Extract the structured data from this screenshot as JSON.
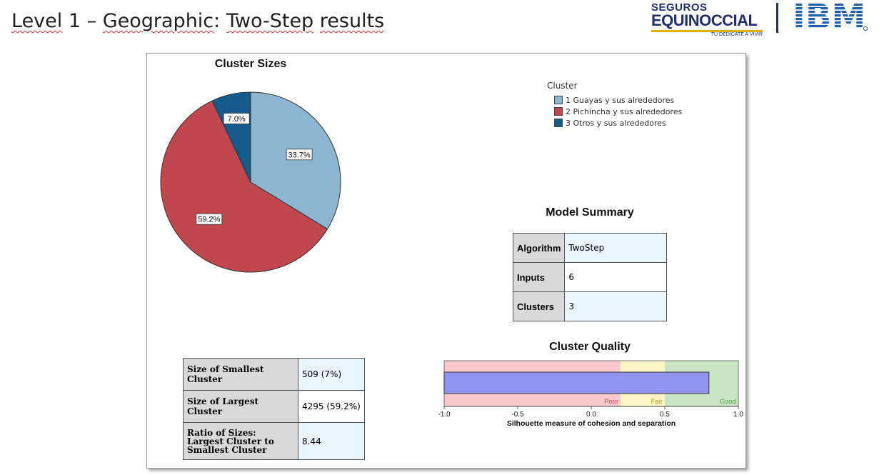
{
  "slide": {
    "title_parts": [
      "Level",
      " 1 – ",
      "Geographic",
      ": ",
      "Two-Step",
      " ",
      "results"
    ]
  },
  "logos": {
    "equinoccial_line1": "SEGUROS",
    "equinoccial_line2": "EQUINOCCIAL",
    "equinoccial_tagline": "TÚ DEDÍCATE A VIVIR",
    "ibm": "IBM"
  },
  "pie": {
    "title": "Cluster Sizes",
    "slices": [
      {
        "label": "33.7%",
        "value": 33.7,
        "color": "#8bb5d0"
      },
      {
        "label": "59.2%",
        "value": 59.2,
        "color": "#c0474d"
      },
      {
        "label": "7.0%",
        "value": 7.0,
        "color": "#155a8c"
      }
    ]
  },
  "legend": {
    "title": "Cluster",
    "items": [
      {
        "num": "1",
        "name": "Guayas y sus alrededores",
        "color": "#8bb5d0"
      },
      {
        "num": "2",
        "name": "Pichincha y sus alrededores",
        "color": "#c0474d"
      },
      {
        "num": "3",
        "name": "Otros y sus alrededores",
        "color": "#155a8c"
      }
    ]
  },
  "model_summary": {
    "title": "Model Summary",
    "rows": [
      {
        "label": "Algorithm",
        "value": "TwoStep"
      },
      {
        "label": "Inputs",
        "value": "6"
      },
      {
        "label": "Clusters",
        "value": "3"
      }
    ]
  },
  "cluster_quality": {
    "title": "Cluster Quality",
    "xlabel": "Silhouette measure of cohesion and separation",
    "ticks": [
      "-1.0",
      "-0.5",
      "0.0",
      "0.5",
      "1.0"
    ],
    "zones": [
      {
        "label": "Poor",
        "from": -1.0,
        "to": 0.2,
        "color": "#f9c9cd",
        "text_color": "#c74c55"
      },
      {
        "label": "Fair",
        "from": 0.2,
        "to": 0.5,
        "color": "#fdf6c4",
        "text_color": "#a89a2a"
      },
      {
        "label": "Good",
        "from": 0.5,
        "to": 1.0,
        "color": "#c9e5c4",
        "text_color": "#4ca13e"
      }
    ],
    "value": 0.8,
    "bar_color": "#9194ef"
  },
  "sizes_table": {
    "rows": [
      {
        "label": "Size of Smallest Cluster",
        "value": "509 (7%)"
      },
      {
        "label": "Size of Largest Cluster",
        "value": "4295 (59.2%)"
      },
      {
        "label": "Ratio of Sizes: Largest Cluster to Smallest Cluster",
        "value": "8.44"
      }
    ]
  },
  "chart_data": [
    {
      "type": "pie",
      "title": "Cluster Sizes",
      "categories": [
        "1 Guayas y sus alrededores",
        "2 Pichincha y sus alrededores",
        "3 Otros y sus alrededores"
      ],
      "values": [
        33.7,
        59.2,
        7.0
      ]
    },
    {
      "type": "bar",
      "title": "Cluster Quality",
      "xlabel": "Silhouette measure of cohesion and separation",
      "categories": [
        "Silhouette"
      ],
      "values": [
        0.8
      ],
      "xlim": [
        -1.0,
        1.0
      ]
    }
  ]
}
